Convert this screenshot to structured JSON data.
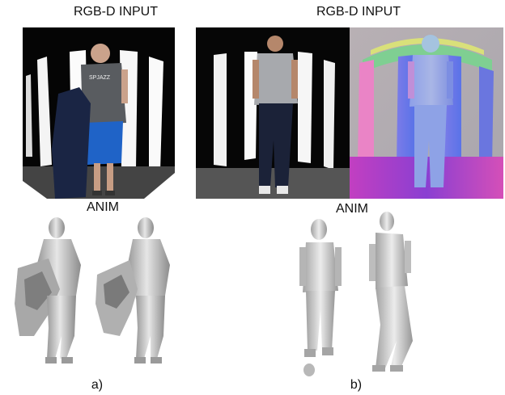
{
  "figure": {
    "panel_a": {
      "input_label": "RGB-D INPUT",
      "output_label": "ANIM",
      "caption": "a)"
    },
    "panel_b": {
      "input_label": "RGB-D INPUT",
      "output_label": "ANIM",
      "caption": "b)"
    },
    "shirt_text": "SPJAZZ"
  }
}
